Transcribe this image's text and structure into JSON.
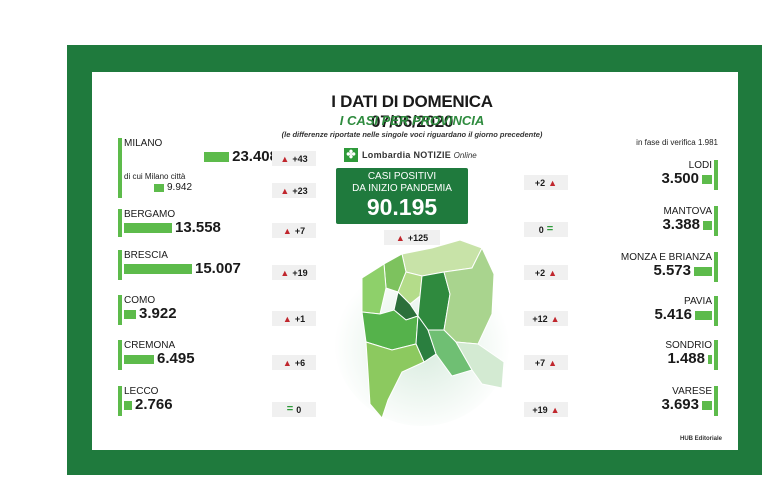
{
  "header": {
    "title": "I DATI DI DOMENICA 07/06/2020",
    "subtitle": "I CASI PER PROVINCIA",
    "note": "(le differenze riportate nelle singole voci riguardano il giorno precedente)",
    "verification": "in fase di verifica 1.981"
  },
  "logo": {
    "brand": "Lombardia NOTIZIE",
    "suffix": "Online",
    "icon": "lombardia-rose-icon"
  },
  "total": {
    "label_line1": "CASI POSITIVI",
    "label_line2": "DA INIZIO PANDEMIA",
    "value": "90.195",
    "delta": "+125"
  },
  "left_provinces": [
    {
      "name": "MILANO",
      "value": "23.408",
      "delta": "+43",
      "direction": "up"
    },
    {
      "name": "di cui Milano città",
      "value": "9.942",
      "delta": "+23",
      "direction": "up"
    },
    {
      "name": "BERGAMO",
      "value": "13.558",
      "delta": "+7",
      "direction": "up"
    },
    {
      "name": "BRESCIA",
      "value": "15.007",
      "delta": "+19",
      "direction": "up"
    },
    {
      "name": "COMO",
      "value": "3.922",
      "delta": "+1",
      "direction": "up"
    },
    {
      "name": "CREMONA",
      "value": "6.495",
      "delta": "+6",
      "direction": "up"
    },
    {
      "name": "LECCO",
      "value": "2.766",
      "delta": "0",
      "direction": "equal"
    }
  ],
  "right_provinces": [
    {
      "name": "LODI",
      "value": "3.500",
      "delta": "+2",
      "direction": "up"
    },
    {
      "name": "MANTOVA",
      "value": "3.388",
      "delta": "0",
      "direction": "equal"
    },
    {
      "name": "MONZA E BRIANZA",
      "value": "5.573",
      "delta": "+2",
      "direction": "up"
    },
    {
      "name": "PAVIA",
      "value": "5.416",
      "delta": "+12",
      "direction": "up"
    },
    {
      "name": "SONDRIO",
      "value": "1.488",
      "delta": "+7",
      "direction": "up"
    },
    {
      "name": "VARESE",
      "value": "3.693",
      "delta": "+19",
      "direction": "up"
    }
  ],
  "credit": "HUB Editoriale",
  "colors": {
    "frame": "#1f7a3d",
    "bar": "#5dbb4b",
    "up_arrow": "#c0262d",
    "equal_sign": "#2e9a3a"
  }
}
